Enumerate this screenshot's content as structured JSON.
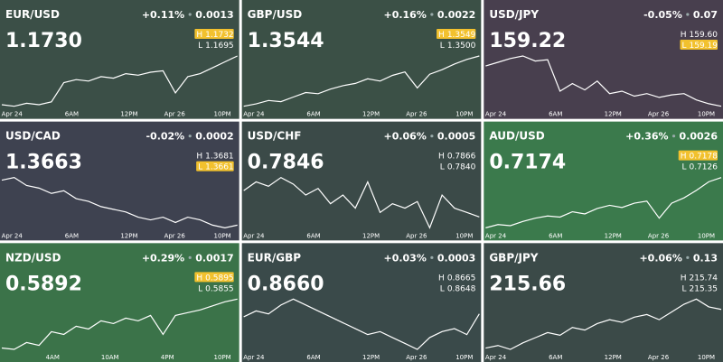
{
  "labels": {
    "high": "H",
    "low": "L"
  },
  "tiles": [
    {
      "pair": "EUR/USD",
      "change_pct": "+0.11%",
      "change": "0.0013",
      "price": "1.1730",
      "high": "1.1732",
      "low": "1.1695",
      "highlight": "high",
      "color": "#3b4f47",
      "x_labels": [
        "Apr 24",
        "6AM",
        "12PM",
        "Apr 26",
        "10PM"
      ],
      "series": [
        1.1697,
        1.1696,
        1.1698,
        1.1697,
        1.1699,
        1.1712,
        1.1714,
        1.1713,
        1.1716,
        1.1715,
        1.1718,
        1.1717,
        1.1719,
        1.172,
        1.1705,
        1.1716,
        1.1718,
        1.1722,
        1.1726,
        1.173
      ]
    },
    {
      "pair": "GBP/USD",
      "change_pct": "+0.16%",
      "change": "0.0022",
      "price": "1.3544",
      "high": "1.3549",
      "low": "1.3500",
      "highlight": "high",
      "color": "#3b5046",
      "x_labels": [
        "Apr 24",
        "6AM",
        "12PM",
        "Apr 26",
        "10PM"
      ],
      "series": [
        1.35,
        1.3502,
        1.3505,
        1.3504,
        1.3508,
        1.3512,
        1.3511,
        1.3515,
        1.3518,
        1.352,
        1.3524,
        1.3522,
        1.3527,
        1.353,
        1.3516,
        1.3528,
        1.3532,
        1.3537,
        1.3541,
        1.3544
      ]
    },
    {
      "pair": "USD/JPY",
      "change_pct": "-0.05%",
      "change": "0.07",
      "price": "159.22",
      "high": "159.60",
      "low": "159.19",
      "highlight": "low",
      "color": "#483f4e",
      "x_labels": [
        "Apr 24",
        "6AM",
        "12PM",
        "Apr 26",
        "10PM"
      ],
      "series": [
        159.52,
        159.55,
        159.58,
        159.6,
        159.56,
        159.57,
        159.32,
        159.38,
        159.33,
        159.4,
        159.3,
        159.32,
        159.28,
        159.3,
        159.27,
        159.29,
        159.3,
        159.25,
        159.22,
        159.2
      ]
    },
    {
      "pair": "USD/CAD",
      "change_pct": "-0.02%",
      "change": "0.0002",
      "price": "1.3663",
      "high": "1.3681",
      "low": "1.3661",
      "highlight": "low",
      "color": "#3e4250",
      "x_labels": [
        "Apr 24",
        "6AM",
        "12PM",
        "Apr 26",
        "10PM"
      ],
      "series": [
        1.368,
        1.3681,
        1.3678,
        1.3677,
        1.3675,
        1.3676,
        1.3673,
        1.3672,
        1.367,
        1.3669,
        1.3668,
        1.3666,
        1.3665,
        1.3666,
        1.3664,
        1.3666,
        1.3665,
        1.3663,
        1.3662,
        1.3663
      ]
    },
    {
      "pair": "USD/CHF",
      "change_pct": "+0.06%",
      "change": "0.0005",
      "price": "0.7846",
      "high": "0.7866",
      "low": "0.7840",
      "color": "#3b4a48",
      "x_labels": [
        "Apr 24",
        "6AM",
        "12PM",
        "Apr 26",
        "10PM"
      ],
      "series": [
        0.7858,
        0.7862,
        0.786,
        0.7864,
        0.7861,
        0.7856,
        0.7859,
        0.7852,
        0.7856,
        0.785,
        0.7862,
        0.7848,
        0.7852,
        0.785,
        0.7853,
        0.7841,
        0.7856,
        0.785,
        0.7848,
        0.7846
      ]
    },
    {
      "pair": "AUD/USD",
      "change_pct": "+0.36%",
      "change": "0.0026",
      "price": "0.7174",
      "high": "0.7178",
      "low": "0.7126",
      "highlight": "high",
      "color": "#3b7a4c",
      "x_labels": [
        "Apr 24",
        "6AM",
        "12PM",
        "Apr 26",
        "10PM"
      ],
      "series": [
        0.7127,
        0.713,
        0.7129,
        0.7133,
        0.7136,
        0.7138,
        0.7137,
        0.7142,
        0.714,
        0.7145,
        0.7148,
        0.7146,
        0.715,
        0.7152,
        0.7136,
        0.715,
        0.7155,
        0.7162,
        0.717,
        0.7174
      ]
    },
    {
      "pair": "NZD/USD",
      "change_pct": "+0.29%",
      "change": "0.0017",
      "price": "0.5892",
      "high": "0.5895",
      "low": "0.5855",
      "highlight": "high",
      "color": "#3b7349",
      "x_labels": [
        "4AM",
        "10AM",
        "4PM",
        "10PM"
      ],
      "series": [
        0.5856,
        0.5855,
        0.586,
        0.5858,
        0.5868,
        0.5866,
        0.5872,
        0.587,
        0.5876,
        0.5874,
        0.5878,
        0.5876,
        0.588,
        0.5866,
        0.588,
        0.5882,
        0.5884,
        0.5887,
        0.589,
        0.5892
      ]
    },
    {
      "pair": "EUR/GBP",
      "change_pct": "+0.03%",
      "change": "0.0003",
      "price": "0.8660",
      "high": "0.8665",
      "low": "0.8648",
      "color": "#3a4a4a",
      "x_labels": [
        "Apr 24",
        "6AM",
        "12PM",
        "Apr 26",
        "10PM"
      ],
      "series": [
        0.8659,
        0.8661,
        0.866,
        0.8663,
        0.8665,
        0.8663,
        0.8661,
        0.8659,
        0.8657,
        0.8655,
        0.8653,
        0.8654,
        0.8652,
        0.865,
        0.8648,
        0.8652,
        0.8654,
        0.8655,
        0.8653,
        0.866
      ]
    },
    {
      "pair": "GBP/JPY",
      "change_pct": "+0.06%",
      "change": "0.13",
      "price": "215.66",
      "high": "215.74",
      "low": "215.35",
      "color": "#3b4a48",
      "x_labels": [
        "Apr 24",
        "6AM",
        "12PM",
        "Apr 26",
        "10PM"
      ],
      "series": [
        215.36,
        215.38,
        215.35,
        215.4,
        215.44,
        215.48,
        215.46,
        215.52,
        215.5,
        215.55,
        215.58,
        215.56,
        215.6,
        215.62,
        215.58,
        215.64,
        215.7,
        215.74,
        215.68,
        215.66
      ]
    }
  ]
}
